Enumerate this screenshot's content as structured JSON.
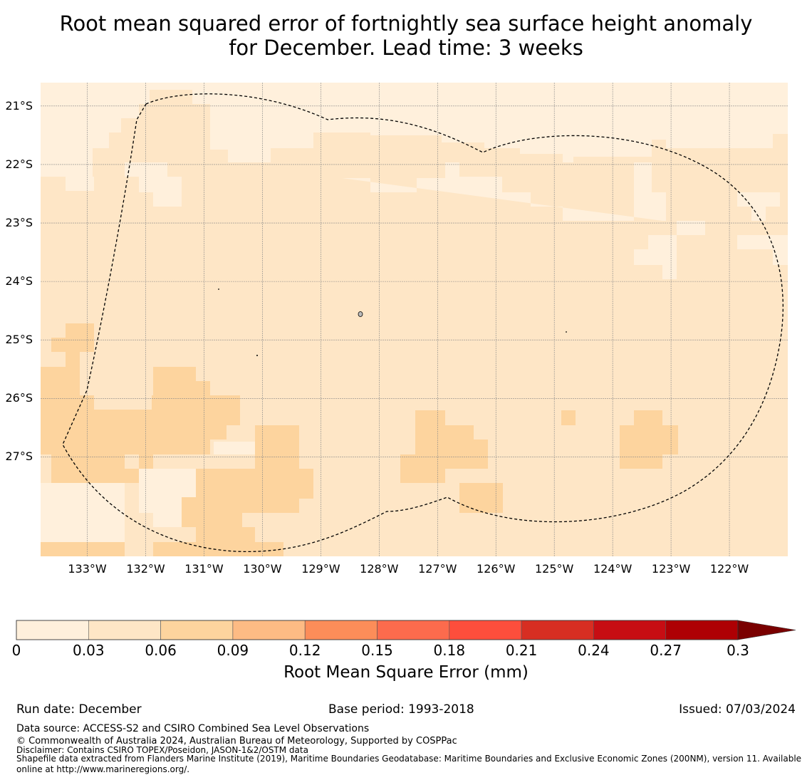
{
  "title": {
    "line1": "Root mean squared error of fortnightly sea surface height anomaly",
    "line2": "for December. Lead time: 3 weeks"
  },
  "map": {
    "latitude_labels": [
      "21°S",
      "22°S",
      "23°S",
      "24°S",
      "25°S",
      "26°S",
      "27°S"
    ],
    "longitude_labels": [
      "133°W",
      "132°W",
      "131°W",
      "130°W",
      "129°W",
      "128°W",
      "127°W",
      "126°W",
      "125°W",
      "124°W",
      "123°W",
      "122°W"
    ],
    "extent": {
      "west_lon": -133.8,
      "east_lon": -121.0,
      "north_lat": -20.6,
      "south_lat": -28.7
    },
    "grid_resolution_deg": 0.25,
    "field_description": "Mostly 0.03–0.06 mm RMSE; 0–0.03 along the northern edge; 0.06–0.09 patches in the southwest and south-center",
    "colors": {
      "bin_0_003": "#fff0dc",
      "bin_003_006": "#fee6c6",
      "bin_006_009": "#fdd49e"
    }
  },
  "colorbar": {
    "tick_labels": [
      "0",
      "0.03",
      "0.06",
      "0.09",
      "0.12",
      "0.15",
      "0.18",
      "0.21",
      "0.24",
      "0.27",
      "0.3"
    ],
    "boundaries": [
      0,
      0.03,
      0.06,
      0.09,
      0.12,
      0.15,
      0.18,
      0.21,
      0.24,
      0.27,
      0.3
    ],
    "colors": [
      "#fff0dc",
      "#fee6c6",
      "#fdd49e",
      "#fdbb84",
      "#fc8d59",
      "#fc6b4d",
      "#fd4e3c",
      "#d72e22",
      "#c70d13",
      "#ae0004"
    ],
    "extend_color": "#7a0000",
    "label": "Root Mean Square Error (mm)"
  },
  "footer": {
    "run_date": "Run date: December",
    "base_period": "Base period: 1993-2018",
    "issued": "Issued: 07/03/2024",
    "data_source": "Data source: ACCESS-S2 and CSIRO Combined Sea Level Observations",
    "copyright": "© Commonwealth of Australia 2024, Australian Bureau of Meteorology, Supported by COSPPac",
    "disclaimer": "Disclaimer: Contains CSIRO TOPEX/Poseidon, JASON-1&2/OSTM data",
    "shapefile_line1": "Shapefile data extracted from Flanders Marine Institute (2019), Maritime Boundaries Geodatabase: Maritime Boundaries and Exclusive Economic Zones (200NM), version 11. Available",
    "shapefile_line2": "online at http://www.marineregions.org/."
  }
}
